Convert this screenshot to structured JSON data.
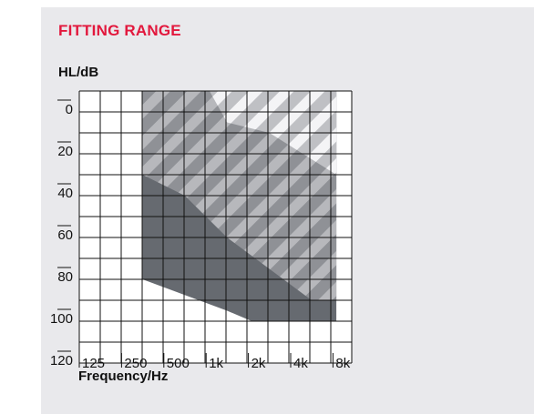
{
  "title": "FITTING RANGE",
  "chart_data": {
    "type": "area",
    "title": "FITTING RANGE",
    "ylabel": "HL/dB",
    "xlabel": "Frequency/Hz",
    "x_ticks": [
      "125",
      "250",
      "500",
      "1k",
      "2k",
      "4k",
      "8k"
    ],
    "y_ticks": [
      "0",
      "20",
      "40",
      "60",
      "80",
      "100",
      "120"
    ],
    "ylim": [
      -10,
      120
    ],
    "y_reversed": true,
    "x_scale": "octave",
    "series": [
      {
        "fill": "#666a70",
        "hatch": "none",
        "points": [
          [
            250,
            -10
          ],
          [
            6000,
            -10
          ],
          [
            6000,
            100
          ],
          [
            1500,
            100
          ],
          [
            1000,
            95
          ],
          [
            250,
            80
          ]
        ]
      },
      {
        "fill": "#8f9196",
        "hatch": "#b7b8bc",
        "points": [
          [
            250,
            -10
          ],
          [
            6000,
            -10
          ],
          [
            6000,
            90
          ],
          [
            4000,
            90
          ],
          [
            2000,
            75
          ],
          [
            1000,
            60
          ],
          [
            500,
            40
          ],
          [
            250,
            30
          ]
        ]
      },
      {
        "fill": "#bfc0c4",
        "hatch": "#f4f4f6",
        "points": [
          [
            750,
            -10
          ],
          [
            6000,
            -10
          ],
          [
            6000,
            30
          ],
          [
            2000,
            10
          ],
          [
            1000,
            5
          ]
        ]
      }
    ],
    "grid": true,
    "colors": {
      "title": "#e2183d",
      "grid": "#111111"
    }
  }
}
